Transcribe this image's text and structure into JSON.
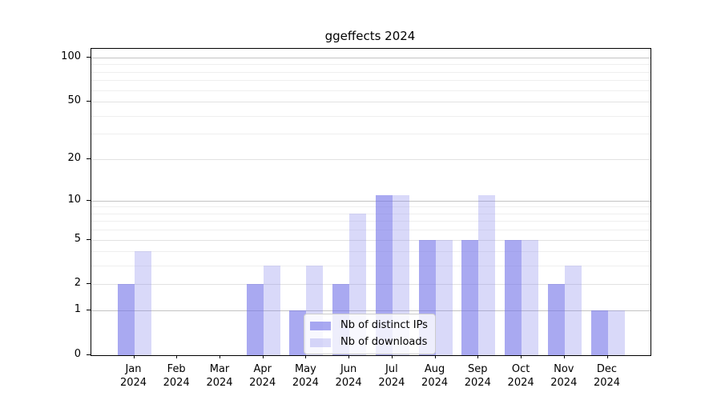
{
  "chart_data": {
    "type": "bar",
    "title": "ggeffects 2024",
    "categories": [
      "Jan",
      "Feb",
      "Mar",
      "Apr",
      "May",
      "Jun",
      "Jul",
      "Aug",
      "Sep",
      "Oct",
      "Nov",
      "Dec"
    ],
    "x_tick_year": "2024",
    "series": [
      {
        "name": "Nb of distinct IPs",
        "color": "rgba(112,112,232,0.6)",
        "values": [
          2,
          0,
          0,
          2,
          1,
          2,
          11,
          5,
          5,
          5,
          2,
          1
        ]
      },
      {
        "name": "Nb of downloads",
        "color": "rgba(130,130,235,0.3)",
        "values": [
          4,
          0,
          0,
          3,
          3,
          8,
          11,
          5,
          11,
          5,
          3,
          1
        ]
      }
    ],
    "y_axis": {
      "scale": "log1p",
      "ticks": [
        0,
        1,
        2,
        5,
        10,
        20,
        50,
        100
      ],
      "minor_ticks": [
        3,
        4,
        6,
        7,
        8,
        9,
        30,
        40,
        60,
        70,
        80,
        90
      ],
      "ylim": [
        0,
        115
      ]
    },
    "legend_position": "lower center",
    "grid": true
  },
  "colors": {
    "grid_decade": "#c3c3c3",
    "grid_major": "#e2e2e2",
    "grid_minor": "#efefef",
    "axis": "#000000",
    "legend_border": "#cccccc",
    "legend_background": "rgba(255,255,255,0.8)"
  }
}
